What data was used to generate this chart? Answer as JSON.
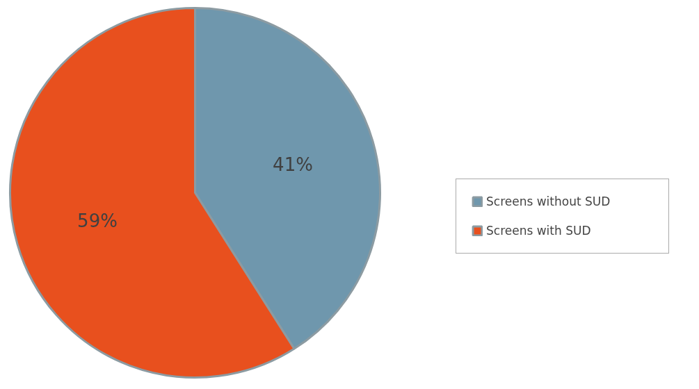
{
  "chart_data": {
    "type": "pie",
    "categories": [
      "Screens without SUD",
      "Screens with SUD"
    ],
    "values": [
      41,
      59
    ],
    "colors": [
      "#6f97ad",
      "#e8501e"
    ],
    "value_labels": [
      "41%",
      "59%"
    ],
    "legend": "right"
  }
}
